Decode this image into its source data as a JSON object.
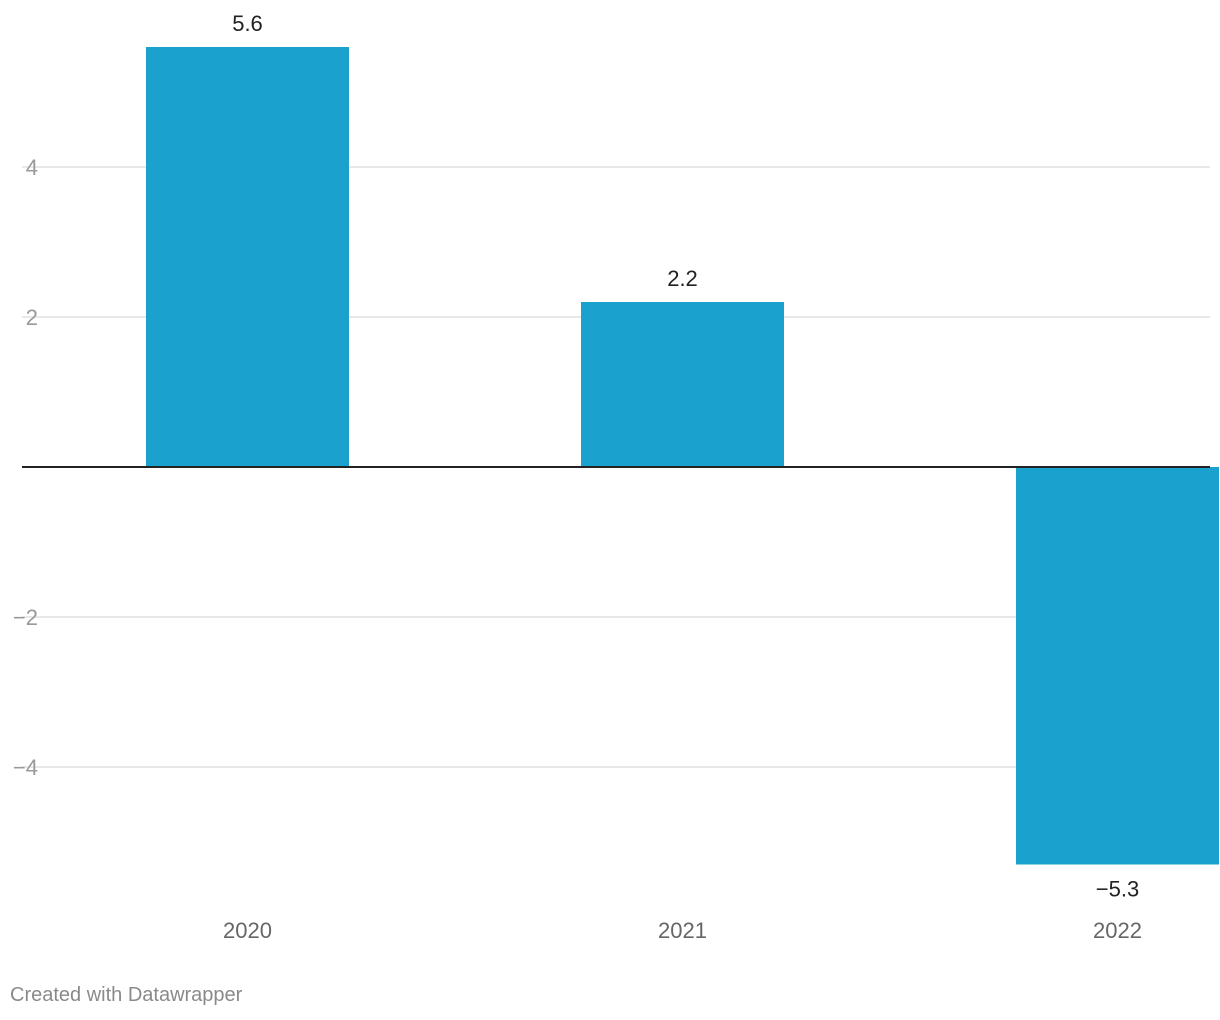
{
  "chart_data": {
    "type": "bar",
    "categories": [
      "2020",
      "2021",
      "2022"
    ],
    "values": [
      5.6,
      2.2,
      -5.3
    ],
    "value_labels": [
      "5.6",
      "2.2",
      "−5.3"
    ],
    "y_ticks": [
      {
        "value": 4,
        "label": "4"
      },
      {
        "value": 2,
        "label": "2"
      },
      {
        "value": -2,
        "label": "−2"
      },
      {
        "value": -4,
        "label": "−4"
      }
    ],
    "ylim": [
      -5.3,
      5.6
    ],
    "grid": true,
    "bar_color": "#1aa1ce",
    "title": "",
    "xlabel": "",
    "ylabel": ""
  },
  "footer": {
    "credit": "Created with Datawrapper"
  }
}
